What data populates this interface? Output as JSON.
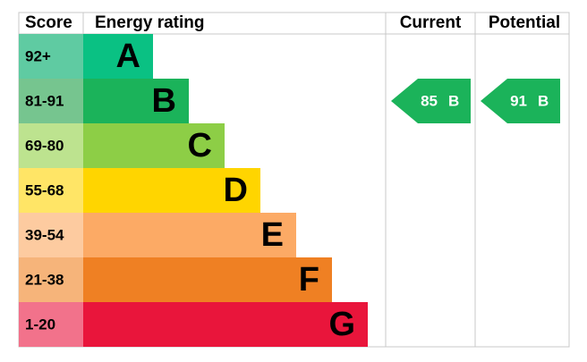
{
  "header": {
    "score": "Score",
    "energy_rating": "Energy rating",
    "current": "Current",
    "potential": "Potential"
  },
  "bands": [
    {
      "score": "92+",
      "letter": "A",
      "color": "#0ac183",
      "score_color": "#5fcba2"
    },
    {
      "score": "81-91",
      "letter": "B",
      "color": "#1bb35a",
      "score_color": "#76c58f"
    },
    {
      "score": "69-80",
      "letter": "C",
      "color": "#8dce46",
      "score_color": "#bde38f"
    },
    {
      "score": "55-68",
      "letter": "D",
      "color": "#ffd500",
      "score_color": "#ffe566"
    },
    {
      "score": "39-54",
      "letter": "E",
      "color": "#fcaa65",
      "score_color": "#fdcba0"
    },
    {
      "score": "21-38",
      "letter": "F",
      "color": "#ef8023",
      "score_color": "#f6b47a"
    },
    {
      "score": "1-20",
      "letter": "G",
      "color": "#e9153b",
      "score_color": "#f2728b"
    }
  ],
  "current": {
    "score": 85,
    "letter": "B"
  },
  "potential": {
    "score": 91,
    "letter": "B"
  }
}
